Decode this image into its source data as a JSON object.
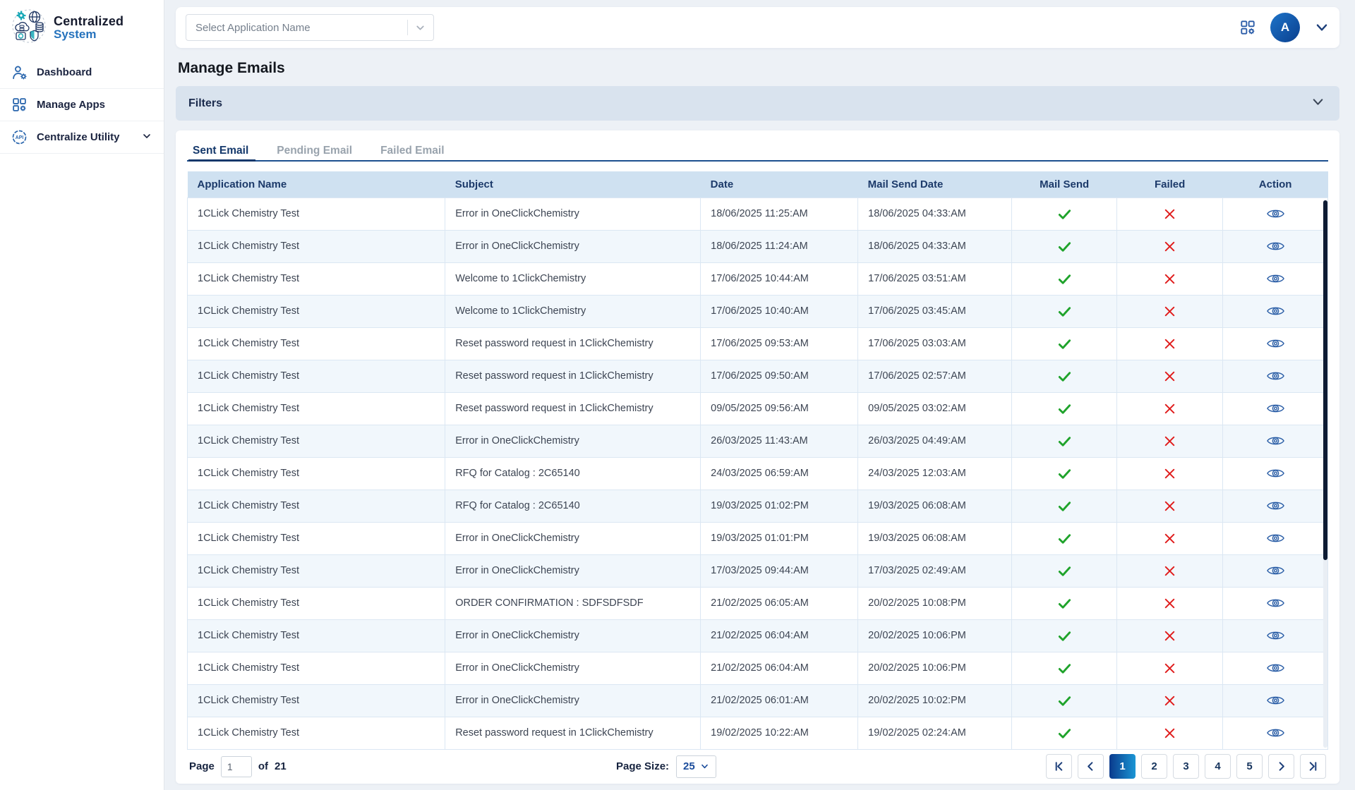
{
  "sidebar": {
    "logo": {
      "title": "Centralized",
      "subtitle": "System"
    },
    "items": [
      {
        "label": "Dashboard",
        "icon": "user-gear-icon"
      },
      {
        "label": "Manage Apps",
        "icon": "grid-gear-icon"
      },
      {
        "label": "Centralize Utility",
        "icon": "api-icon",
        "has_chevron": true
      }
    ]
  },
  "topbar": {
    "select_placeholder": "Select Application Name",
    "avatar_text": "A"
  },
  "page": {
    "title": "Manage Emails",
    "filters_label": "Filters"
  },
  "tabs": [
    {
      "label": "Sent Email",
      "active": true
    },
    {
      "label": "Pending Email",
      "active": false
    },
    {
      "label": "Failed Email",
      "active": false
    }
  ],
  "table": {
    "columns": [
      "Application Name",
      "Subject",
      "Date",
      "Mail Send Date",
      "Mail Send",
      "Failed",
      "Action"
    ],
    "rows": [
      {
        "app": "1CLick Chemistry Test",
        "subject": "Error in OneClickChemistry",
        "date": "18/06/2025 11:25:AM",
        "mail_send_date": "18/06/2025 04:33:AM",
        "mail_send": true,
        "failed": false
      },
      {
        "app": "1CLick Chemistry Test",
        "subject": "Error in OneClickChemistry",
        "date": "18/06/2025 11:24:AM",
        "mail_send_date": "18/06/2025 04:33:AM",
        "mail_send": true,
        "failed": false
      },
      {
        "app": "1CLick Chemistry Test",
        "subject": "Welcome to 1ClickChemistry",
        "date": "17/06/2025 10:44:AM",
        "mail_send_date": "17/06/2025 03:51:AM",
        "mail_send": true,
        "failed": false
      },
      {
        "app": "1CLick Chemistry Test",
        "subject": "Welcome to 1ClickChemistry",
        "date": "17/06/2025 10:40:AM",
        "mail_send_date": "17/06/2025 03:45:AM",
        "mail_send": true,
        "failed": false
      },
      {
        "app": "1CLick Chemistry Test",
        "subject": "Reset password request in 1ClickChemistry",
        "date": "17/06/2025 09:53:AM",
        "mail_send_date": "17/06/2025 03:03:AM",
        "mail_send": true,
        "failed": false
      },
      {
        "app": "1CLick Chemistry Test",
        "subject": "Reset password request in 1ClickChemistry",
        "date": "17/06/2025 09:50:AM",
        "mail_send_date": "17/06/2025 02:57:AM",
        "mail_send": true,
        "failed": false
      },
      {
        "app": "1CLick Chemistry Test",
        "subject": "Reset password request in 1ClickChemistry",
        "date": "09/05/2025 09:56:AM",
        "mail_send_date": "09/05/2025 03:02:AM",
        "mail_send": true,
        "failed": false
      },
      {
        "app": "1CLick Chemistry Test",
        "subject": "Error in OneClickChemistry",
        "date": "26/03/2025 11:43:AM",
        "mail_send_date": "26/03/2025 04:49:AM",
        "mail_send": true,
        "failed": false
      },
      {
        "app": "1CLick Chemistry Test",
        "subject": "RFQ for Catalog : 2C65140",
        "date": "24/03/2025 06:59:AM",
        "mail_send_date": "24/03/2025 12:03:AM",
        "mail_send": true,
        "failed": false
      },
      {
        "app": "1CLick Chemistry Test",
        "subject": "RFQ for Catalog : 2C65140",
        "date": "19/03/2025 01:02:PM",
        "mail_send_date": "19/03/2025 06:08:AM",
        "mail_send": true,
        "failed": false
      },
      {
        "app": "1CLick Chemistry Test",
        "subject": "Error in OneClickChemistry",
        "date": "19/03/2025 01:01:PM",
        "mail_send_date": "19/03/2025 06:08:AM",
        "mail_send": true,
        "failed": false
      },
      {
        "app": "1CLick Chemistry Test",
        "subject": "Error in OneClickChemistry",
        "date": "17/03/2025 09:44:AM",
        "mail_send_date": "17/03/2025 02:49:AM",
        "mail_send": true,
        "failed": false
      },
      {
        "app": "1CLick Chemistry Test",
        "subject": "ORDER CONFIRMATION : SDFSDFSDF",
        "date": "21/02/2025 06:05:AM",
        "mail_send_date": "20/02/2025 10:08:PM",
        "mail_send": true,
        "failed": false
      },
      {
        "app": "1CLick Chemistry Test",
        "subject": "Error in OneClickChemistry",
        "date": "21/02/2025 06:04:AM",
        "mail_send_date": "20/02/2025 10:06:PM",
        "mail_send": true,
        "failed": false
      },
      {
        "app": "1CLick Chemistry Test",
        "subject": "Error in OneClickChemistry",
        "date": "21/02/2025 06:04:AM",
        "mail_send_date": "20/02/2025 10:06:PM",
        "mail_send": true,
        "failed": false
      },
      {
        "app": "1CLick Chemistry Test",
        "subject": "Error in OneClickChemistry",
        "date": "21/02/2025 06:01:AM",
        "mail_send_date": "20/02/2025 10:02:PM",
        "mail_send": true,
        "failed": false
      },
      {
        "app": "1CLick Chemistry Test",
        "subject": "Reset password request in 1ClickChemistry",
        "date": "19/02/2025 10:22:AM",
        "mail_send_date": "19/02/2025 02:24:AM",
        "mail_send": true,
        "failed": false
      }
    ]
  },
  "footer": {
    "page_label": "Page",
    "page_value": "1",
    "of_label": "of",
    "total_pages": "21",
    "page_size_label": "Page Size:",
    "page_size_value": "25",
    "pagination": [
      {
        "kind": "first"
      },
      {
        "kind": "prev"
      },
      {
        "kind": "page",
        "label": "1",
        "active": true
      },
      {
        "kind": "page",
        "label": "2",
        "active": false
      },
      {
        "kind": "page",
        "label": "3",
        "active": false
      },
      {
        "kind": "page",
        "label": "4",
        "active": false
      },
      {
        "kind": "page",
        "label": "5",
        "active": false
      },
      {
        "kind": "next"
      },
      {
        "kind": "last"
      }
    ]
  },
  "colors": {
    "accent_blue": "#2a66ad",
    "navy_text": "#1b2440",
    "header_bg": "#cfe1f1",
    "filters_bg": "#d9e3ee",
    "check_green": "#1fa32b",
    "cross_red": "#e01e1e",
    "active_page_gradient_start": "#0a3a8c",
    "active_page_gradient_end": "#1b96d5"
  }
}
